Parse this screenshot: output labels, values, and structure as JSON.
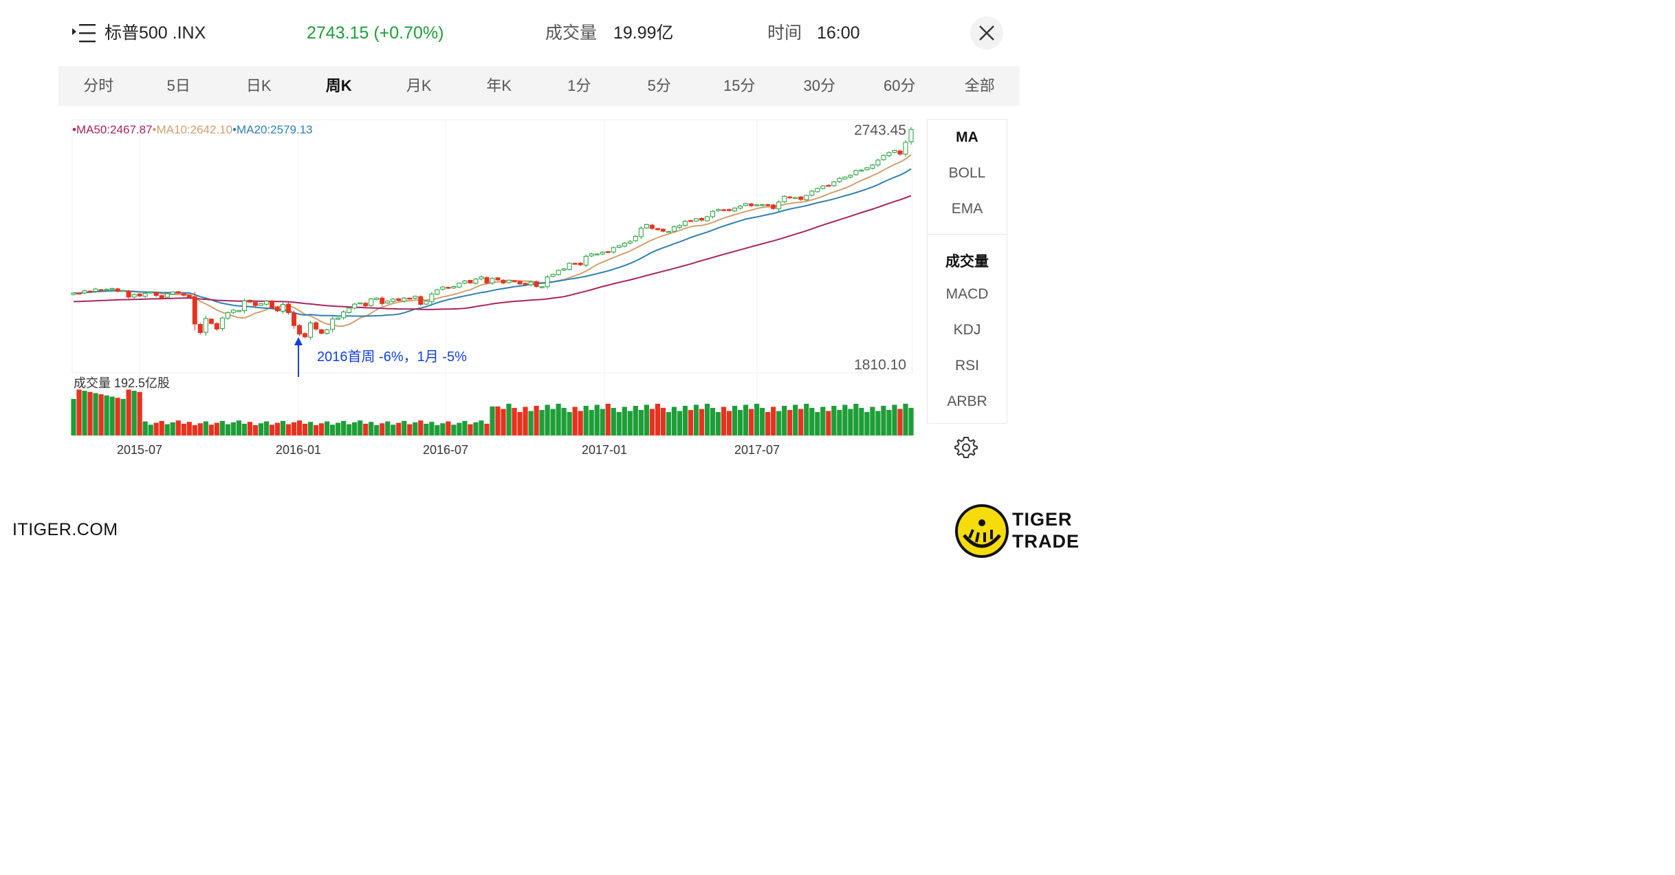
{
  "header": {
    "title": "标普500 .INX",
    "price": "2743.15 (+0.70%)",
    "volume_label": "成交量",
    "volume_value": "19.99亿",
    "time_label": "时间",
    "time_value": "16:00"
  },
  "tabs": [
    "分时",
    "5日",
    "日K",
    "周K",
    "月K",
    "年K",
    "1分",
    "5分",
    "15分",
    "30分",
    "60分",
    "全部"
  ],
  "active_tab": "周K",
  "indicators": {
    "main": [
      "MA",
      "BOLL",
      "EMA"
    ],
    "sub": [
      "成交量",
      "MACD",
      "KDJ",
      "RSI",
      "ARBR"
    ],
    "active_main": "MA",
    "active_sub": "成交量"
  },
  "colors": {
    "up": "#1e9e38",
    "down": "#e8321f",
    "ma50": "#a8245f",
    "ma10": "#d2a06c",
    "ma20": "#2f7fb0",
    "annotation": "#1040e0"
  },
  "chart_data": {
    "type": "candlestick",
    "legend": {
      "ma50": "•MA50:2467.87",
      "ma10": "•MA10:2642.10",
      "ma20": "•MA20:2579.13"
    },
    "price_max_label": "2743.45",
    "price_min_label": "1810.10",
    "ylim": [
      1810.1,
      2743.45
    ],
    "x_ticks": [
      "2015-07",
      "2016-01",
      "2016-07",
      "2017-01",
      "2017-07"
    ],
    "volume_label": "成交量  192.5亿股",
    "annotation": "2016首周 -6%，1月 -5%",
    "closes": [
      2094,
      2092,
      2103,
      2099,
      2110,
      2105,
      2109,
      2112,
      2101,
      2104,
      2078,
      2088,
      2082,
      2093,
      2098,
      2084,
      2075,
      2091,
      2098,
      2093,
      2085,
      2077,
      1971,
      1937,
      1993,
      1973,
      1951,
      1995,
      2016,
      2026,
      2024,
      2063,
      2058,
      2044,
      2052,
      2062,
      2035,
      2023,
      2049,
      2016,
      1965,
      1931,
      1920,
      1975,
      1951,
      1934,
      1948,
      1991,
      1995,
      2019,
      2034,
      2050,
      2055,
      2043,
      2071,
      2074,
      2052,
      2062,
      2070,
      2064,
      2074,
      2071,
      2081,
      2049,
      2062,
      2090,
      2107,
      2118,
      2113,
      2120,
      2133,
      2142,
      2134,
      2149,
      2158,
      2134,
      2152,
      2146,
      2134,
      2145,
      2140,
      2130,
      2128,
      2138,
      2120,
      2119,
      2158,
      2168,
      2184,
      2190,
      2212,
      2210,
      2206,
      2240,
      2249,
      2249,
      2256,
      2258,
      2274,
      2282,
      2292,
      2299,
      2319,
      2351,
      2366,
      2350,
      2345,
      2339,
      2338,
      2357,
      2362,
      2379,
      2381,
      2389,
      2383,
      2397,
      2418,
      2426,
      2424,
      2422,
      2431,
      2439,
      2449,
      2440,
      2444,
      2445,
      2441,
      2429,
      2455,
      2478,
      2472,
      2473,
      2465,
      2481,
      2498,
      2509,
      2519,
      2521,
      2535,
      2549,
      2554,
      2561,
      2580,
      2582,
      2591,
      2602,
      2621,
      2640,
      2651,
      2660,
      2645,
      2692,
      2743
    ]
  }
}
